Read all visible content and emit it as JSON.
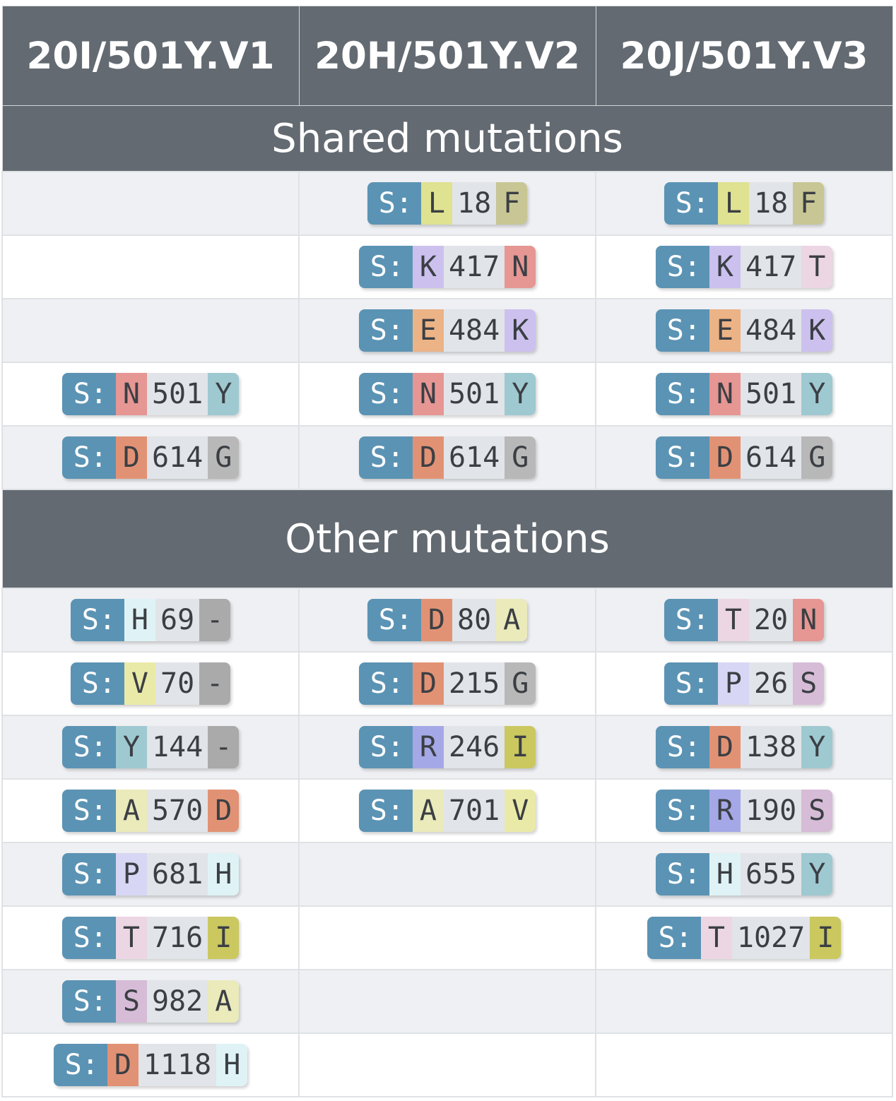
{
  "columns": [
    "20I/501Y.V1",
    "20H/501Y.V2",
    "20J/501Y.V3"
  ],
  "sections": [
    {
      "title": "Shared mutations",
      "rows": [
        [
          null,
          {
            "gene": "S:",
            "ref": "L",
            "pos": "18",
            "alt": "F"
          },
          {
            "gene": "S:",
            "ref": "L",
            "pos": "18",
            "alt": "F"
          }
        ],
        [
          null,
          {
            "gene": "S:",
            "ref": "K",
            "pos": "417",
            "alt": "N"
          },
          {
            "gene": "S:",
            "ref": "K",
            "pos": "417",
            "alt": "T"
          }
        ],
        [
          null,
          {
            "gene": "S:",
            "ref": "E",
            "pos": "484",
            "alt": "K"
          },
          {
            "gene": "S:",
            "ref": "E",
            "pos": "484",
            "alt": "K"
          }
        ],
        [
          {
            "gene": "S:",
            "ref": "N",
            "pos": "501",
            "alt": "Y"
          },
          {
            "gene": "S:",
            "ref": "N",
            "pos": "501",
            "alt": "Y"
          },
          {
            "gene": "S:",
            "ref": "N",
            "pos": "501",
            "alt": "Y"
          }
        ],
        [
          {
            "gene": "S:",
            "ref": "D",
            "pos": "614",
            "alt": "G"
          },
          {
            "gene": "S:",
            "ref": "D",
            "pos": "614",
            "alt": "G"
          },
          {
            "gene": "S:",
            "ref": "D",
            "pos": "614",
            "alt": "G"
          }
        ]
      ]
    },
    {
      "title": "Other mutations",
      "rows": [
        [
          {
            "gene": "S:",
            "ref": "H",
            "pos": "69",
            "alt": "-"
          },
          {
            "gene": "S:",
            "ref": "D",
            "pos": "80",
            "alt": "A"
          },
          {
            "gene": "S:",
            "ref": "T",
            "pos": "20",
            "alt": "N"
          }
        ],
        [
          {
            "gene": "S:",
            "ref": "V",
            "pos": "70",
            "alt": "-"
          },
          {
            "gene": "S:",
            "ref": "D",
            "pos": "215",
            "alt": "G"
          },
          {
            "gene": "S:",
            "ref": "P",
            "pos": "26",
            "alt": "S"
          }
        ],
        [
          {
            "gene": "S:",
            "ref": "Y",
            "pos": "144",
            "alt": "-"
          },
          {
            "gene": "S:",
            "ref": "R",
            "pos": "246",
            "alt": "I"
          },
          {
            "gene": "S:",
            "ref": "D",
            "pos": "138",
            "alt": "Y"
          }
        ],
        [
          {
            "gene": "S:",
            "ref": "A",
            "pos": "570",
            "alt": "D"
          },
          {
            "gene": "S:",
            "ref": "A",
            "pos": "701",
            "alt": "V"
          },
          {
            "gene": "S:",
            "ref": "R",
            "pos": "190",
            "alt": "S"
          }
        ],
        [
          {
            "gene": "S:",
            "ref": "P",
            "pos": "681",
            "alt": "H"
          },
          null,
          {
            "gene": "S:",
            "ref": "H",
            "pos": "655",
            "alt": "Y"
          }
        ],
        [
          {
            "gene": "S:",
            "ref": "T",
            "pos": "716",
            "alt": "I"
          },
          null,
          {
            "gene": "S:",
            "ref": "T",
            "pos": "1027",
            "alt": "I"
          }
        ],
        [
          {
            "gene": "S:",
            "ref": "S",
            "pos": "982",
            "alt": "A"
          },
          null,
          null
        ],
        [
          {
            "gene": "S:",
            "ref": "D",
            "pos": "1118",
            "alt": "H"
          },
          null,
          null
        ]
      ]
    }
  ],
  "amino_acid_colors": {
    "A": "#eaeabb",
    "D": "#e29274",
    "E": "#ecb386",
    "F": "#c8c694",
    "G": "#b8b8b8",
    "H": "#dff3f6",
    "I": "#cac85f",
    "K": "#ccc1ee",
    "L": "#dfe290",
    "N": "#e69693",
    "P": "#d7d6f4",
    "R": "#a5a8e6",
    "S": "#d6bcd6",
    "T": "#ecd6e3",
    "V": "#eaeaa8",
    "Y": "#9ec9d1",
    "-": "#aaaaaa"
  },
  "colors": {
    "header_bg": "#636a71",
    "gene_bg": "#5b93b4",
    "pos_bg": "#e1e4e8",
    "row_alt_bg": "#eff0f3"
  }
}
